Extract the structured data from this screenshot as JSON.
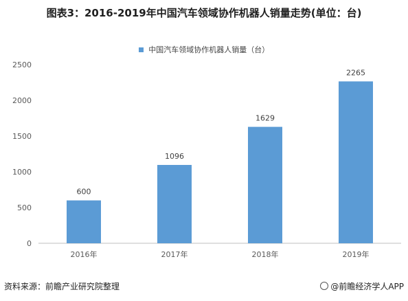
{
  "title": "图表3：2016-2019年中国汽车领域协作机器人销量走势(单位：台)",
  "source": "资料来源：前瞻产业研究院整理",
  "brand": "@前瞻经济学人APP",
  "colors": {
    "bar": "#5b9bd5",
    "grid": "#d9d9d9",
    "axis": "#bfbfbf"
  },
  "chart_data": {
    "type": "bar",
    "categories": [
      "2016年",
      "2017年",
      "2018年",
      "2019年"
    ],
    "series": [
      {
        "name": "中国汽车领域协作机器人销量（台）",
        "values": [
          600,
          1096,
          1629,
          2265
        ]
      }
    ],
    "ylim": [
      0,
      2500
    ],
    "yticks": [
      0,
      500,
      1000,
      1500,
      2000,
      2500
    ],
    "grid": false,
    "legend": "top-center"
  }
}
